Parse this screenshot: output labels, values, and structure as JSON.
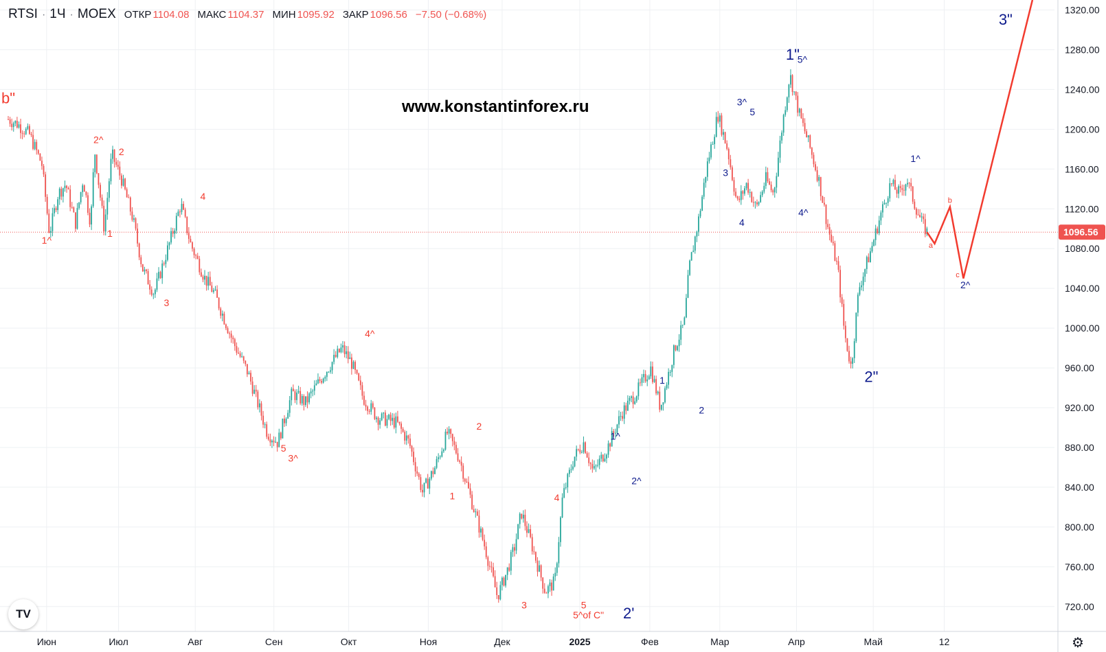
{
  "header": {
    "symbol": "RTSI",
    "interval": "1Ч",
    "exchange": "MOEX",
    "open_label": "ОТКР",
    "open_value": "1104.08",
    "high_label": "МАКС",
    "high_value": "1104.37",
    "low_label": "МИН",
    "low_value": "1095.92",
    "close_label": "ЗАКР",
    "close_value": "1096.56",
    "change": "−7.50 (−0.68%)"
  },
  "watermark_site": "www.konstantinforex.ru",
  "price_badge": "1096.56",
  "logo_text": "TV",
  "colors": {
    "up": "#26a69a",
    "down": "#ef5350",
    "wave_red": "#f23b2f",
    "wave_blue": "#0d1a8c",
    "grid": "#eef0f3"
  },
  "icons": [
    "tradingview-logo-icon",
    "gear-icon"
  ],
  "chart_data": {
    "type": "candlestick",
    "title": "",
    "ylim": [
      695,
      1330
    ],
    "y_ticks": [
      720,
      760,
      800,
      840,
      880,
      920,
      960,
      1000,
      1040,
      1080,
      1120,
      1160,
      1200,
      1240,
      1280,
      1320
    ],
    "y_tick_labels": [
      "720.00",
      "760.00",
      "800.00",
      "840.00",
      "880.00",
      "920.00",
      "960.00",
      "1000.00",
      "1040.00",
      "1080.00",
      "1120.00",
      "1160.00",
      "1200.00",
      "1240.00",
      "1280.00",
      "1320.00"
    ],
    "x_ticks": [
      {
        "t": 0.04,
        "label": "Июн"
      },
      {
        "t": 0.115,
        "label": "Июл"
      },
      {
        "t": 0.195,
        "label": "Авг"
      },
      {
        "t": 0.277,
        "label": "Сен"
      },
      {
        "t": 0.355,
        "label": "Окт"
      },
      {
        "t": 0.438,
        "label": "Ноя"
      },
      {
        "t": 0.515,
        "label": "Дек"
      },
      {
        "t": 0.596,
        "label": "2025"
      },
      {
        "t": 0.669,
        "label": "Фев"
      },
      {
        "t": 0.742,
        "label": "Мар"
      },
      {
        "t": 0.822,
        "label": "Апр"
      },
      {
        "t": 0.902,
        "label": "Май"
      },
      {
        "t": 0.976,
        "label": "12"
      }
    ],
    "last_price": 1096.56,
    "price_path": [
      [
        0.0,
        1210
      ],
      [
        0.01,
        1205
      ],
      [
        0.022,
        1195
      ],
      [
        0.035,
        1165
      ],
      [
        0.043,
        1095
      ],
      [
        0.052,
        1135
      ],
      [
        0.06,
        1145
      ],
      [
        0.07,
        1105
      ],
      [
        0.078,
        1150
      ],
      [
        0.086,
        1105
      ],
      [
        0.09,
        1180
      ],
      [
        0.1,
        1100
      ],
      [
        0.108,
        1175
      ],
      [
        0.118,
        1150
      ],
      [
        0.13,
        1110
      ],
      [
        0.14,
        1060
      ],
      [
        0.152,
        1035
      ],
      [
        0.168,
        1085
      ],
      [
        0.18,
        1125
      ],
      [
        0.19,
        1085
      ],
      [
        0.205,
        1050
      ],
      [
        0.215,
        1035
      ],
      [
        0.235,
        985
      ],
      [
        0.25,
        955
      ],
      [
        0.27,
        895
      ],
      [
        0.281,
        885
      ],
      [
        0.296,
        935
      ],
      [
        0.31,
        925
      ],
      [
        0.33,
        955
      ],
      [
        0.348,
        980
      ],
      [
        0.358,
        965
      ],
      [
        0.37,
        930
      ],
      [
        0.385,
        910
      ],
      [
        0.405,
        905
      ],
      [
        0.418,
        885
      ],
      [
        0.432,
        835
      ],
      [
        0.445,
        860
      ],
      [
        0.458,
        895
      ],
      [
        0.47,
        870
      ],
      [
        0.482,
        830
      ],
      [
        0.497,
        780
      ],
      [
        0.51,
        730
      ],
      [
        0.52,
        755
      ],
      [
        0.528,
        780
      ],
      [
        0.535,
        815
      ],
      [
        0.545,
        785
      ],
      [
        0.56,
        735
      ],
      [
        0.57,
        745
      ],
      [
        0.578,
        830
      ],
      [
        0.59,
        870
      ],
      [
        0.6,
        885
      ],
      [
        0.61,
        855
      ],
      [
        0.625,
        880
      ],
      [
        0.64,
        915
      ],
      [
        0.655,
        935
      ],
      [
        0.67,
        960
      ],
      [
        0.68,
        920
      ],
      [
        0.695,
        980
      ],
      [
        0.705,
        1005
      ],
      [
        0.71,
        1060
      ],
      [
        0.72,
        1110
      ],
      [
        0.728,
        1160
      ],
      [
        0.74,
        1215
      ],
      [
        0.75,
        1180
      ],
      [
        0.76,
        1125
      ],
      [
        0.77,
        1145
      ],
      [
        0.78,
        1120
      ],
      [
        0.79,
        1150
      ],
      [
        0.798,
        1135
      ],
      [
        0.808,
        1210
      ],
      [
        0.815,
        1255
      ],
      [
        0.825,
        1215
      ],
      [
        0.835,
        1185
      ],
      [
        0.845,
        1150
      ],
      [
        0.855,
        1100
      ],
      [
        0.865,
        1060
      ],
      [
        0.872,
        995
      ],
      [
        0.879,
        960
      ],
      [
        0.887,
        1040
      ],
      [
        0.9,
        1080
      ],
      [
        0.91,
        1115
      ],
      [
        0.92,
        1145
      ],
      [
        0.93,
        1135
      ],
      [
        0.937,
        1150
      ],
      [
        0.945,
        1125
      ],
      [
        0.953,
        1105
      ],
      [
        0.958,
        1096.56
      ]
    ],
    "projection_path": [
      [
        0.958,
        1096.56
      ],
      [
        0.966,
        1085
      ],
      [
        0.982,
        1122
      ],
      [
        0.996,
        1050
      ],
      [
        1.068,
        1330
      ]
    ],
    "wave_labels": [
      {
        "text": "b\"",
        "t": 0.0,
        "p": 1226,
        "color": "red",
        "size": "big"
      },
      {
        "text": "1^",
        "t": 0.04,
        "p": 1085,
        "color": "red"
      },
      {
        "text": "2^",
        "t": 0.094,
        "p": 1186,
        "color": "red"
      },
      {
        "text": "2",
        "t": 0.118,
        "p": 1174,
        "color": "red"
      },
      {
        "text": "1",
        "t": 0.106,
        "p": 1092,
        "color": "red"
      },
      {
        "text": "4",
        "t": 0.203,
        "p": 1129,
        "color": "red"
      },
      {
        "text": "3",
        "t": 0.165,
        "p": 1022,
        "color": "red"
      },
      {
        "text": "5",
        "t": 0.287,
        "p": 876,
        "color": "red"
      },
      {
        "text": "3^",
        "t": 0.297,
        "p": 866,
        "color": "red"
      },
      {
        "text": "4^",
        "t": 0.377,
        "p": 991,
        "color": "red"
      },
      {
        "text": "2",
        "t": 0.491,
        "p": 898,
        "color": "red"
      },
      {
        "text": "1",
        "t": 0.463,
        "p": 828,
        "color": "red"
      },
      {
        "text": "4",
        "t": 0.572,
        "p": 826,
        "color": "red"
      },
      {
        "text": "3",
        "t": 0.538,
        "p": 718,
        "color": "red"
      },
      {
        "text": "5",
        "t": 0.6,
        "p": 718,
        "color": "red"
      },
      {
        "text": "5^of C\"",
        "t": 0.605,
        "p": 708,
        "color": "red"
      },
      {
        "text": "2'",
        "t": 0.647,
        "p": 708,
        "color": "blue",
        "size": "big"
      },
      {
        "text": "1^",
        "t": 0.633,
        "p": 888,
        "color": "blue"
      },
      {
        "text": "2^",
        "t": 0.655,
        "p": 843,
        "color": "blue"
      },
      {
        "text": "1",
        "t": 0.682,
        "p": 944,
        "color": "blue"
      },
      {
        "text": "2",
        "t": 0.723,
        "p": 914,
        "color": "blue"
      },
      {
        "text": "3",
        "t": 0.748,
        "p": 1153,
        "color": "blue"
      },
      {
        "text": "4",
        "t": 0.765,
        "p": 1103,
        "color": "blue"
      },
      {
        "text": "3^",
        "t": 0.765,
        "p": 1224,
        "color": "blue"
      },
      {
        "text": "5",
        "t": 0.776,
        "p": 1214,
        "color": "blue"
      },
      {
        "text": "1\"",
        "t": 0.818,
        "p": 1270,
        "color": "blue",
        "size": "big"
      },
      {
        "text": "5^",
        "t": 0.828,
        "p": 1267,
        "color": "blue"
      },
      {
        "text": "4^",
        "t": 0.829,
        "p": 1113,
        "color": "blue"
      },
      {
        "text": "2\"",
        "t": 0.9,
        "p": 946,
        "color": "blue",
        "size": "big"
      },
      {
        "text": "1^",
        "t": 0.946,
        "p": 1167,
        "color": "blue"
      },
      {
        "text": "a",
        "t": 0.962,
        "p": 1081,
        "color": "red",
        "size": "small"
      },
      {
        "text": "b",
        "t": 0.982,
        "p": 1126,
        "color": "red",
        "size": "small"
      },
      {
        "text": "c",
        "t": 0.99,
        "p": 1051,
        "color": "red",
        "size": "small"
      },
      {
        "text": "2^",
        "t": 0.998,
        "p": 1040,
        "color": "blue"
      },
      {
        "text": "3\"",
        "t": 1.04,
        "p": 1305,
        "color": "blue",
        "size": "big"
      }
    ]
  }
}
